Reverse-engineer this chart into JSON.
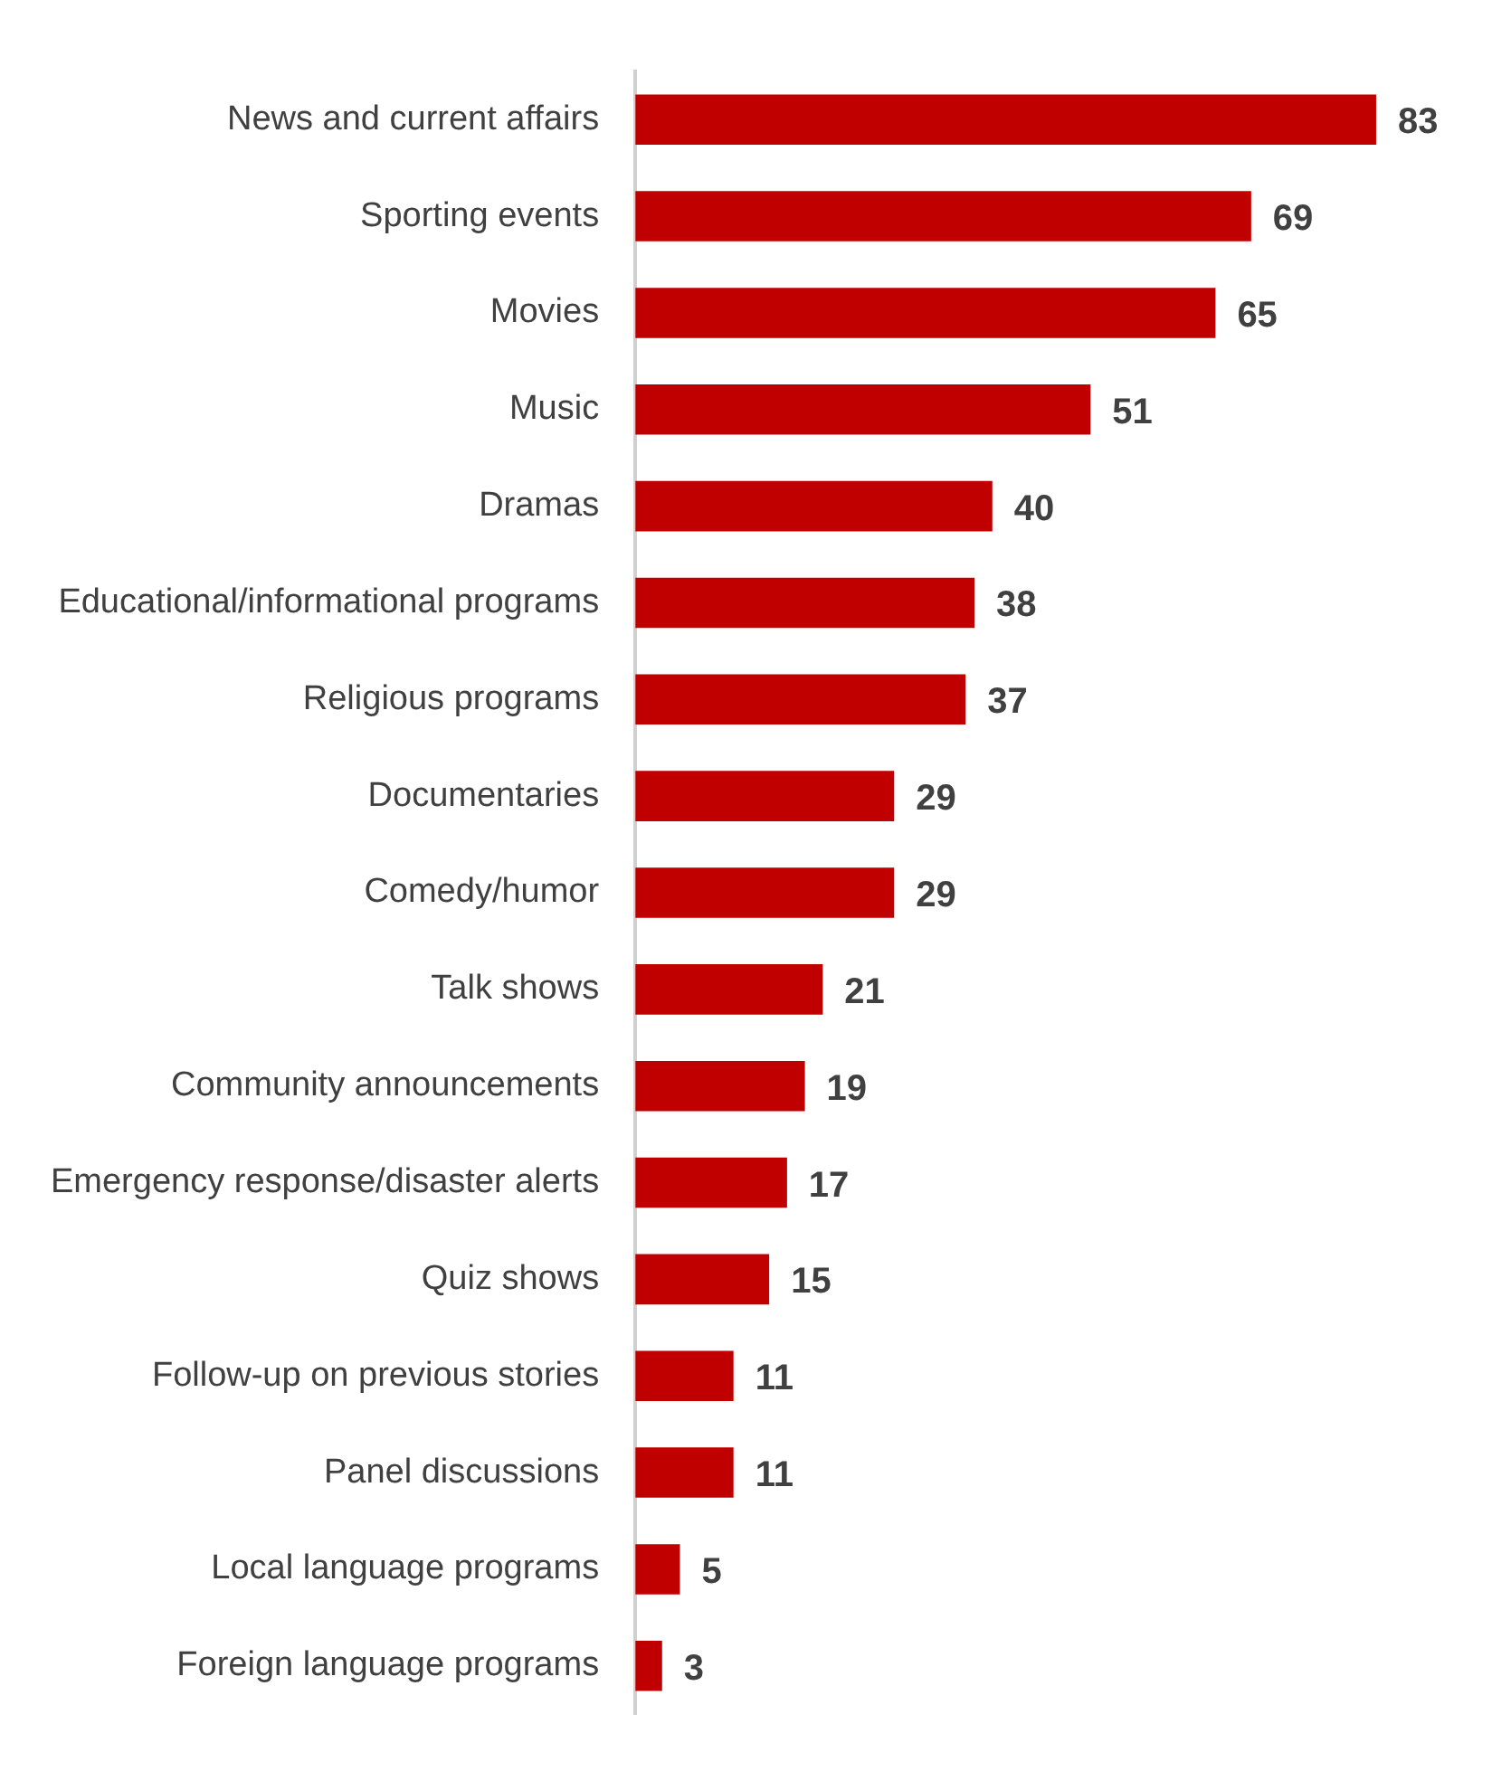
{
  "chart_data": {
    "type": "bar",
    "orientation": "horizontal",
    "categories": [
      "News and current affairs",
      "Sporting events",
      "Movies",
      "Music",
      "Dramas",
      "Educational/informational programs",
      "Religious programs",
      "Documentaries",
      "Comedy/humor",
      "Talk shows",
      "Community announcements",
      "Emergency response/disaster alerts",
      "Quiz shows",
      "Follow-up on previous stories",
      "Panel discussions",
      "Local language programs",
      "Foreign language programs"
    ],
    "values": [
      83,
      69,
      65,
      51,
      40,
      38,
      37,
      29,
      29,
      21,
      19,
      17,
      15,
      11,
      11,
      5,
      3
    ],
    "color": "#c00000",
    "data_labels": true,
    "grid": false,
    "legend": false
  }
}
